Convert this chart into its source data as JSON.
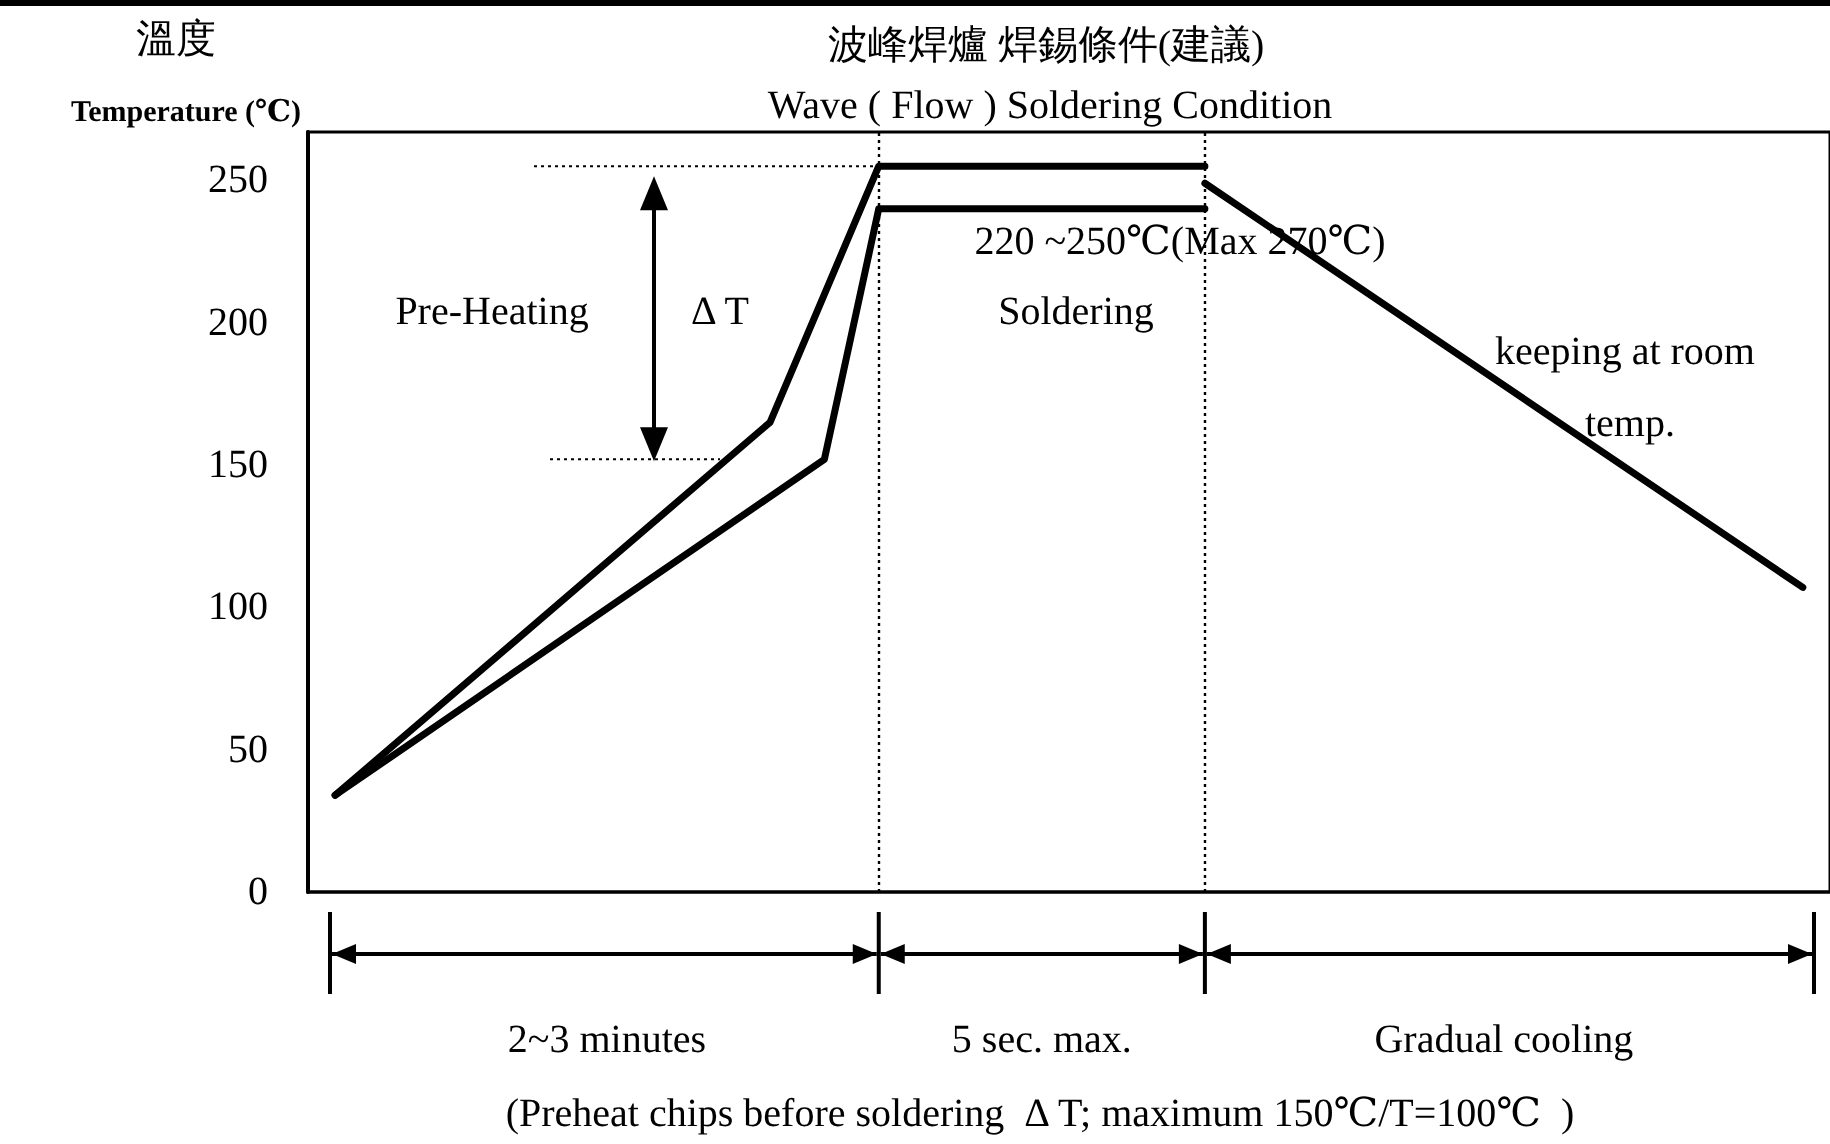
{
  "chart_data": {
    "type": "line",
    "title": "波峰焊爐 焊錫條件(建議)",
    "subtitle": "Wave ( Flow ) Soldering Condition",
    "ylabel": "Temperature (℃)",
    "categories": [
      null,
      null,
      null,
      null,
      null,
      null,
      null,
      null,
      null,
      null,
      null,
      null,
      null,
      null,
      null,
      null,
      null,
      null,
      null,
      null,
      null,
      null,
      null,
      null,
      null,
      null,
      null,
      null
    ],
    "series": [
      {
        "color": "#000000",
        "values": [
          34,
          null,
          null,
          null,
          null,
          null,
          null,
          null,
          165,
          null,
          255,
          null,
          null,
          null,
          null,
          null,
          255,
          null,
          null,
          null,
          null,
          null,
          null,
          null,
          null,
          null,
          null,
          null
        ]
      },
      {
        "color": "#000000",
        "values": [
          34,
          null,
          null,
          null,
          null,
          null,
          null,
          null,
          null,
          152,
          240,
          null,
          null,
          null,
          null,
          null,
          240,
          null,
          null,
          null,
          null,
          null,
          null,
          null,
          null,
          null,
          null,
          null
        ]
      },
      {
        "color": "#000000",
        "values": [
          null,
          null,
          null,
          null,
          null,
          null,
          null,
          null,
          null,
          null,
          null,
          null,
          null,
          null,
          null,
          null,
          249,
          null,
          null,
          null,
          null,
          null,
          null,
          null,
          null,
          null,
          null,
          107
        ]
      }
    ],
    "ylim": [
      0,
      267
    ],
    "yticks": [
      0,
      50,
      100,
      150,
      200,
      250
    ],
    "annotations": [
      "溫度",
      "Pre-Heating",
      "Δ T",
      "220 ~250℃(Max 270℃)",
      "Soldering",
      "keeping at room temp.",
      "2~3 minutes",
      "5 sec. max.",
      "Gradual cooling",
      "(Preheat chips before soldering  Δ T; maximum 150℃/T=100℃  )"
    ],
    "marker": "none",
    "line_style": "solid"
  }
}
